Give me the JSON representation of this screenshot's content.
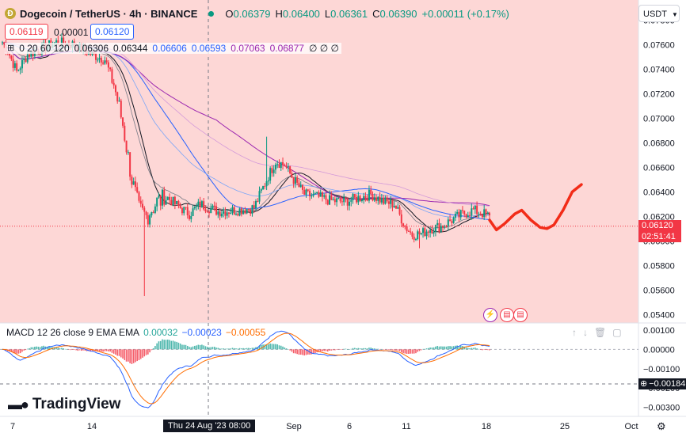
{
  "header": {
    "symbol": "Dogecoin / TetherUS · 4h · BINANCE",
    "logo_icon": "dogecoin-logo-icon",
    "o_label": "O",
    "o": "0.06379",
    "h_label": "H",
    "h": "0.06400",
    "l_label": "L",
    "l": "0.06361",
    "c_label": "C",
    "c": "0.06390",
    "change": "+0.00011 (+0.17%)"
  },
  "sell_price": "0.06119",
  "spread": "0.00001",
  "buy_price": "0.06120",
  "indicator_legend": {
    "inputs": "0 20 60 120",
    "values": [
      {
        "text": "0.06306",
        "color": "#131722"
      },
      {
        "text": "0.06344",
        "color": "#131722"
      },
      {
        "text": "0.06606",
        "color": "#2962ff"
      },
      {
        "text": "0.06593",
        "color": "#2962ff"
      },
      {
        "text": "0.07063",
        "color": "#9c27b0"
      },
      {
        "text": "0.06877",
        "color": "#9c27b0"
      },
      {
        "text": "∅ ∅ ∅",
        "color": "#131722"
      }
    ]
  },
  "currency_select": "USDT",
  "current_price": "0.06120",
  "countdown": "02:51:41",
  "macd": {
    "label": "MACD 12 26 close 9 EMA EMA",
    "v1": "0.00032",
    "v1_color": "#26a69a",
    "v2": "−0.00023",
    "v2_color": "#2962ff",
    "v3": "−0.00055",
    "v3_color": "#ff6d00",
    "current": "−0.00184"
  },
  "crosshair_date": "Thu 24 Aug '23   08:00",
  "branding": "TradingView",
  "colors": {
    "up": "#089981",
    "down": "#f23645",
    "bg_zone": "#fdd7d6",
    "projection": "#f22c18"
  },
  "chart_data": {
    "type": "candlestick",
    "price_axis": {
      "ticks": [
        "0.07800",
        "0.07600",
        "0.07400",
        "0.07200",
        "0.07000",
        "0.06800",
        "0.06600",
        "0.06400",
        "0.06200",
        "0.06000",
        "0.05800",
        "0.05600",
        "0.05400"
      ],
      "range": [
        0.0535,
        0.079
      ]
    },
    "macd_axis": {
      "ticks": [
        "0.00100",
        "0.00000",
        "−0.00100",
        "−0.00200",
        "−0.00300"
      ],
      "range": [
        -0.0033,
        0.0012
      ]
    },
    "time_axis": {
      "labels": [
        "7",
        "14",
        "Sep",
        "6",
        "11",
        "18",
        "25",
        "Oct"
      ]
    },
    "anchors": [
      [
        0,
        0.0762
      ],
      [
        3,
        0.0755
      ],
      [
        8,
        0.0738
      ],
      [
        14,
        0.0752
      ],
      [
        22,
        0.0757
      ],
      [
        30,
        0.0762
      ],
      [
        40,
        0.076
      ],
      [
        50,
        0.0752
      ],
      [
        57,
        0.0748
      ],
      [
        62,
        0.0728
      ],
      [
        67,
        0.0695
      ],
      [
        72,
        0.065
      ],
      [
        76,
        0.0625
      ],
      [
        80,
        0.062
      ],
      [
        86,
        0.0632
      ],
      [
        92,
        0.0635
      ],
      [
        98,
        0.0628
      ],
      [
        104,
        0.0622
      ],
      [
        110,
        0.063
      ],
      [
        120,
        0.0624
      ],
      [
        130,
        0.0625
      ],
      [
        140,
        0.0627
      ],
      [
        147,
        0.065
      ],
      [
        152,
        0.0665
      ],
      [
        157,
        0.0662
      ],
      [
        162,
        0.065
      ],
      [
        168,
        0.0638
      ],
      [
        175,
        0.0636
      ],
      [
        182,
        0.0633
      ],
      [
        190,
        0.0632
      ],
      [
        198,
        0.0635
      ],
      [
        205,
        0.0638
      ],
      [
        212,
        0.0632
      ],
      [
        218,
        0.063
      ],
      [
        224,
        0.0612
      ],
      [
        228,
        0.0605
      ],
      [
        233,
        0.0606
      ],
      [
        238,
        0.061
      ],
      [
        244,
        0.0612
      ],
      [
        250,
        0.0617
      ],
      [
        256,
        0.0622
      ],
      [
        262,
        0.0625
      ],
      [
        268,
        0.0622
      ],
      [
        271,
        0.0619
      ]
    ],
    "projection": [
      [
        0.0617,
        0
      ],
      [
        0.0609,
        6
      ],
      [
        0.0614,
        13
      ],
      [
        0.0622,
        22
      ],
      [
        0.0625,
        28
      ],
      [
        0.0617,
        36
      ],
      [
        0.0611,
        44
      ],
      [
        0.061,
        50
      ],
      [
        0.0613,
        56
      ],
      [
        0.0625,
        64
      ],
      [
        0.064,
        72
      ],
      [
        0.0646,
        80
      ]
    ]
  }
}
